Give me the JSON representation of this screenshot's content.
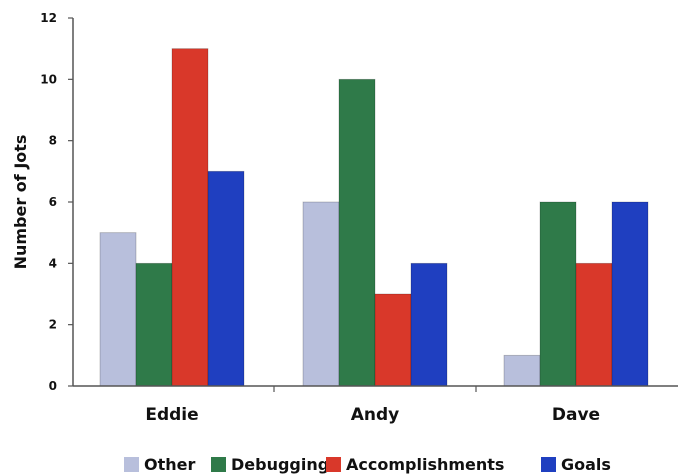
{
  "chart_data": {
    "type": "bar",
    "title": "",
    "xlabel": "",
    "ylabel": "Number of Jots",
    "ylim": [
      0,
      12
    ],
    "yticks": [
      "0",
      "2",
      "4",
      "6",
      "8",
      "10",
      "12"
    ],
    "grid": false,
    "legend_position": "bottom",
    "categories": [
      "Eddie",
      "Andy",
      "Dave"
    ],
    "series": [
      {
        "name": "Other",
        "color": "#b8bfdc",
        "values": [
          5,
          6,
          1
        ]
      },
      {
        "name": "Debugging",
        "color": "#2f7a49",
        "values": [
          4,
          10,
          6
        ]
      },
      {
        "name": "Accomplishments",
        "color": "#d9382a",
        "values": [
          11,
          3,
          4
        ]
      },
      {
        "name": "Goals",
        "color": "#1f3fc0",
        "values": [
          7,
          4,
          6
        ]
      }
    ]
  }
}
